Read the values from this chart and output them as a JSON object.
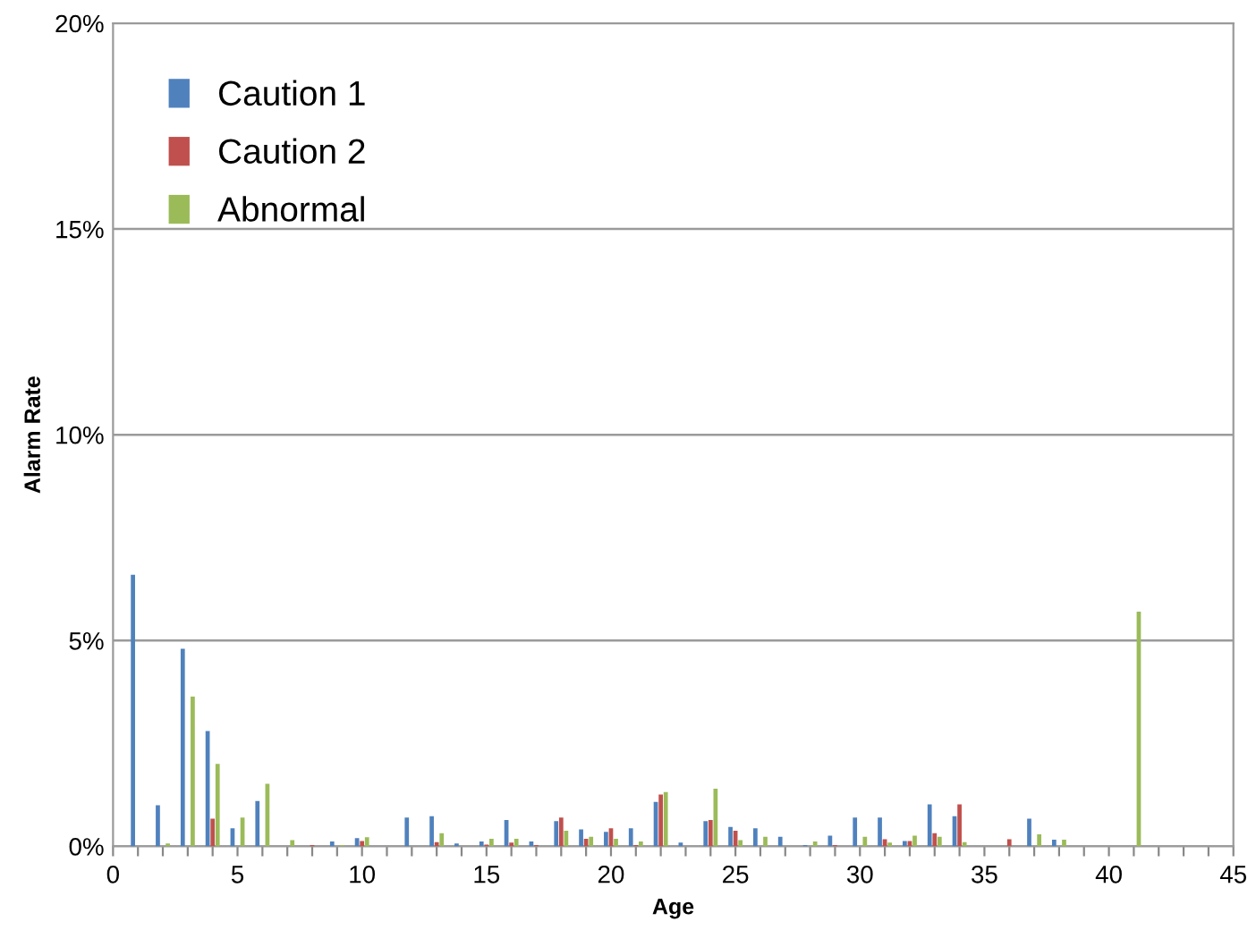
{
  "chart_data": {
    "type": "bar",
    "xlabel": "Age",
    "ylabel": "Alarm Rate",
    "x": [
      1,
      2,
      3,
      4,
      5,
      6,
      7,
      8,
      9,
      10,
      11,
      12,
      13,
      14,
      15,
      16,
      17,
      18,
      19,
      20,
      21,
      22,
      23,
      24,
      25,
      26,
      27,
      28,
      29,
      30,
      31,
      32,
      33,
      34,
      35,
      36,
      37,
      38,
      39,
      40,
      41,
      42,
      43,
      44
    ],
    "series": [
      {
        "name": "Caution 1",
        "color": "#4f81bd",
        "values": [
          6.6,
          1.0,
          4.8,
          2.8,
          0.44,
          1.1,
          0,
          0,
          0.12,
          0.2,
          0,
          0.7,
          0.73,
          0.07,
          0.12,
          0.64,
          0.12,
          0.61,
          0.41,
          0.35,
          0.44,
          1.08,
          0.09,
          0.61,
          0.47,
          0.44,
          0.23,
          0.03,
          0.26,
          0.7,
          0.7,
          0.13,
          1.02,
          0.73,
          0,
          0,
          0.67,
          0.16,
          0,
          0,
          0,
          0,
          0,
          0
        ]
      },
      {
        "name": "Caution 2",
        "color": "#c0504d",
        "values": [
          0,
          0,
          0,
          0.67,
          0,
          0,
          0,
          0.03,
          0,
          0.13,
          0,
          0,
          0.1,
          0,
          0.04,
          0.09,
          0.03,
          0.7,
          0.18,
          0.44,
          0.03,
          1.26,
          0,
          0.64,
          0.38,
          0,
          0,
          0,
          0.03,
          0,
          0.17,
          0.13,
          0.32,
          1.02,
          0,
          0.17,
          0,
          0,
          0,
          0,
          0,
          0,
          0,
          0
        ]
      },
      {
        "name": "Abnormal",
        "color": "#9bbb59",
        "values": [
          0,
          0.07,
          3.64,
          2.0,
          0.7,
          1.52,
          0.15,
          0,
          0.03,
          0.22,
          0,
          0,
          0.32,
          0,
          0.18,
          0.18,
          0,
          0.38,
          0.23,
          0.18,
          0.12,
          1.32,
          0,
          1.4,
          0.15,
          0.23,
          0,
          0.12,
          0,
          0.23,
          0.09,
          0.26,
          0.23,
          0.1,
          0,
          0,
          0.29,
          0.16,
          0,
          0,
          5.7,
          0,
          0,
          0
        ]
      }
    ],
    "xlim": [
      0,
      45
    ],
    "xticks": [
      0,
      {
        "value": 1,
        "label": null
      },
      {
        "value": 2,
        "label": null
      },
      {
        "value": 3,
        "label": null
      },
      {
        "value": 4,
        "label": null
      },
      5,
      {
        "value": 6,
        "label": null
      },
      {
        "value": 7,
        "label": null
      },
      {
        "value": 8,
        "label": null
      },
      {
        "value": 9,
        "label": null
      },
      10,
      {
        "value": 11,
        "label": null
      },
      {
        "value": 12,
        "label": null
      },
      {
        "value": 13,
        "label": null
      },
      {
        "value": 14,
        "label": null
      },
      15,
      {
        "value": 16,
        "label": null
      },
      {
        "value": 17,
        "label": null
      },
      {
        "value": 18,
        "label": null
      },
      {
        "value": 19,
        "label": null
      },
      20,
      {
        "value": 21,
        "label": null
      },
      {
        "value": 22,
        "label": null
      },
      {
        "value": 23,
        "label": null
      },
      {
        "value": 24,
        "label": null
      },
      25,
      {
        "value": 26,
        "label": null
      },
      {
        "value": 27,
        "label": null
      },
      {
        "value": 28,
        "label": null
      },
      {
        "value": 29,
        "label": null
      },
      30,
      {
        "value": 31,
        "label": null
      },
      {
        "value": 32,
        "label": null
      },
      {
        "value": 33,
        "label": null
      },
      {
        "value": 34,
        "label": null
      },
      35,
      {
        "value": 36,
        "label": null
      },
      {
        "value": 37,
        "label": null
      },
      {
        "value": 38,
        "label": null
      },
      {
        "value": 39,
        "label": null
      },
      40,
      {
        "value": 41,
        "label": null
      },
      {
        "value": 42,
        "label": null
      },
      {
        "value": 43,
        "label": null
      },
      {
        "value": 44,
        "label": null
      },
      45
    ],
    "ylim": [
      0,
      20
    ],
    "yticks": [
      {
        "value": 0,
        "label": "0%"
      },
      {
        "value": 5,
        "label": "5%"
      },
      {
        "value": 10,
        "label": "10%"
      },
      {
        "value": 15,
        "label": "15%"
      },
      {
        "value": 20,
        "label": "20%"
      }
    ],
    "grid": "y",
    "legend": "top left"
  }
}
